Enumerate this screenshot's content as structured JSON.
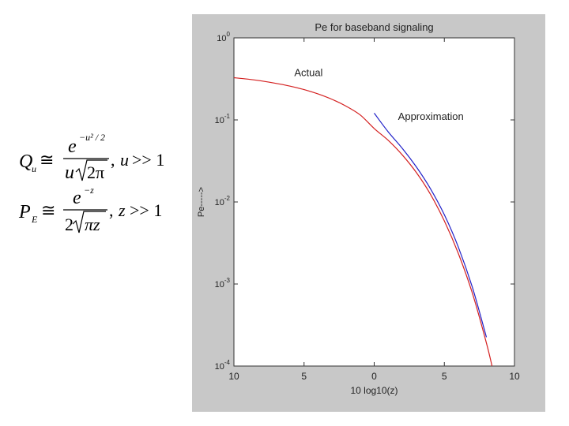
{
  "formulas": {
    "q": {
      "lhs_main": "Q",
      "lhs_sub": "u",
      "approx": "≅",
      "num_base": "e",
      "num_exp": "−u² / 2",
      "den_var": "u",
      "den_root": "2π",
      "condition_var": "u",
      "condition_rel": ">> 1"
    },
    "p": {
      "lhs_main": "P",
      "lhs_sub": "E",
      "approx": "≅",
      "num_base": "e",
      "num_exp": "−z",
      "den_coef": "2",
      "den_root": "πz",
      "condition_var": "z",
      "condition_rel": ">> 1"
    }
  },
  "chart_data": {
    "type": "line",
    "title": "Pe for baseband signaling",
    "xlabel": "10 log10(z)",
    "ylabel": "Pe----->",
    "x_axis": {
      "range": [
        -10,
        10
      ],
      "reversed_labels": true,
      "ticks": [
        {
          "value": -10,
          "label": "10"
        },
        {
          "value": -5,
          "label": "5"
        },
        {
          "value": 0,
          "label": "0"
        },
        {
          "value": 5,
          "label": "5"
        },
        {
          "value": 10,
          "label": "10"
        }
      ]
    },
    "y_axis": {
      "scale": "log",
      "range": [
        0.0001,
        1
      ],
      "ticks": [
        {
          "value": 1,
          "base": "10",
          "exp": "0"
        },
        {
          "value": 0.1,
          "base": "10",
          "exp": "-1"
        },
        {
          "value": 0.01,
          "base": "10",
          "exp": "-2"
        },
        {
          "value": 0.001,
          "base": "10",
          "exp": "-3"
        },
        {
          "value": 0.0001,
          "base": "10",
          "exp": "-4"
        }
      ]
    },
    "grid": false,
    "annotations": [
      {
        "text": "Actual",
        "x": -5.7,
        "y": 0.34
      },
      {
        "text": "Approximation",
        "x": 1.7,
        "y": 0.1
      }
    ],
    "series": [
      {
        "color": "#d42020",
        "x": [
          -10,
          -9,
          -8,
          -7,
          -6,
          -5,
          -4,
          -3,
          -2,
          -1,
          0,
          1,
          2,
          3,
          4,
          5,
          6,
          7,
          8,
          8.4
        ],
        "y": [
          0.327,
          0.314,
          0.298,
          0.279,
          0.258,
          0.234,
          0.207,
          0.178,
          0.147,
          0.115,
          0.0786,
          0.0563,
          0.0375,
          0.0229,
          0.0125,
          0.00587,
          0.00235,
          0.00077,
          0.000191,
          0.0001
        ]
      },
      {
        "color": "#2020c8",
        "x": [
          0,
          1,
          2,
          3,
          4,
          5,
          6,
          7,
          8
        ],
        "y": [
          0.121,
          0.0714,
          0.0451,
          0.0268,
          0.0146,
          0.00697,
          0.00281,
          0.00091,
          0.000225
        ]
      }
    ]
  },
  "colors": {
    "panel": "#c8c8c8",
    "plot_bg": "#ffffff",
    "axis": "#333333"
  }
}
